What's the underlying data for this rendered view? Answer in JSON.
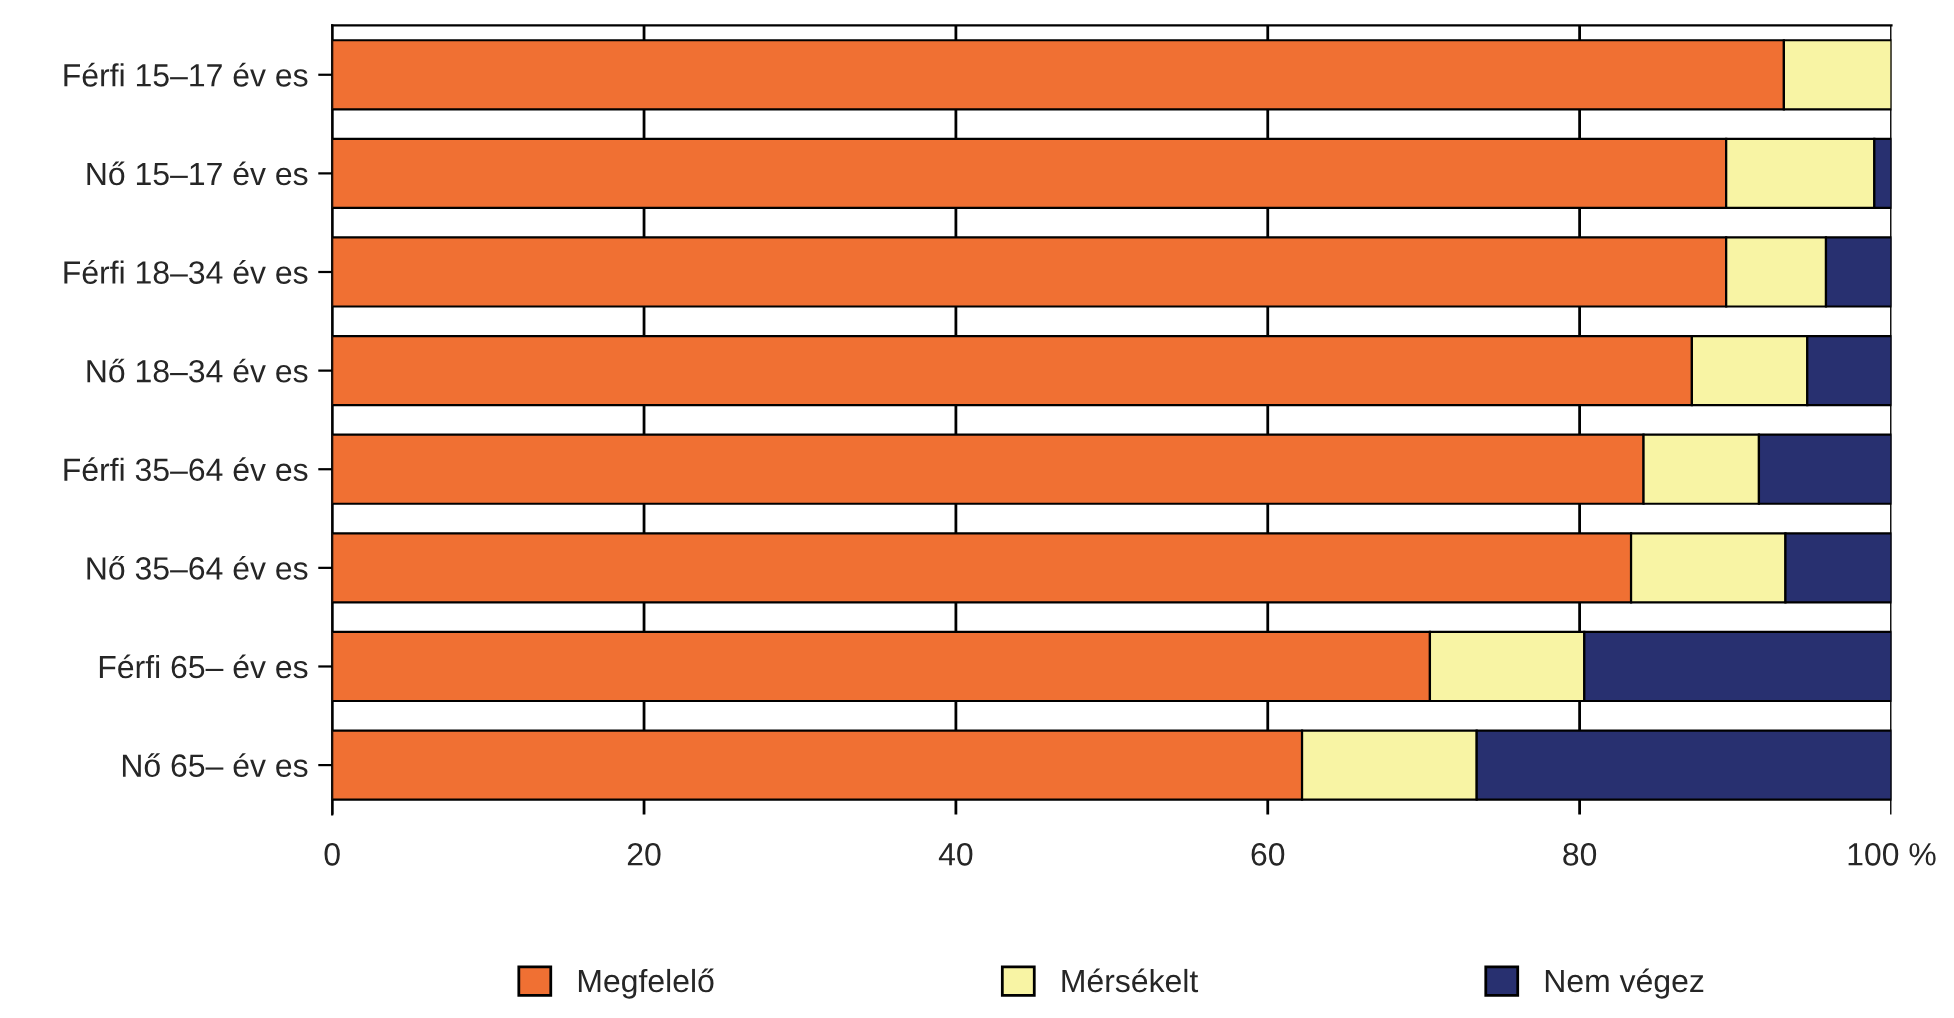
{
  "chart_data": {
    "type": "bar",
    "orientation": "horizontal",
    "stacked": true,
    "categories": [
      "Férfi 15–17 év es",
      "Nő 15–17 év es",
      "Férfi 18–34 év es",
      "Nő 18–34 év es",
      "Férfi 35–64 év es",
      "Nő 35–64 év es",
      "Férfi 65– év es",
      "Nő 65– év es"
    ],
    "series": [
      {
        "name": "Megfelelő",
        "color": "#f07033",
        "values": [
          93.1,
          89.4,
          89.4,
          87.2,
          84.1,
          83.3,
          70.4,
          62.2
        ]
      },
      {
        "name": "Mérsékelt",
        "color": "#f8f4a4",
        "values": [
          6.9,
          9.5,
          6.4,
          7.4,
          7.4,
          9.9,
          9.9,
          11.2
        ]
      },
      {
        "name": "Nem végez",
        "color": "#283070",
        "values": [
          null,
          1.1,
          4.2,
          5.4,
          8.5,
          6.8,
          19.7,
          26.6
        ]
      }
    ],
    "xlim": [
      0,
      100
    ],
    "xticks": [
      0,
      20,
      40,
      60,
      80,
      {
        "value": 100,
        "label": "100 %"
      }
    ],
    "grid": "x",
    "legend": "bottom"
  }
}
